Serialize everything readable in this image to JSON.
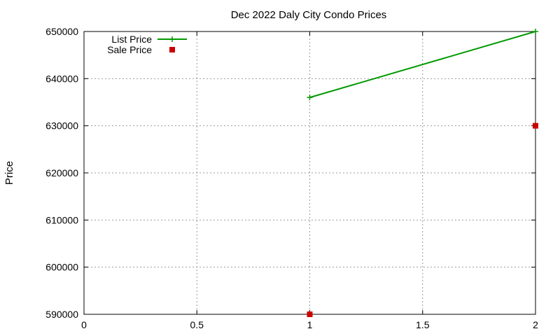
{
  "chart_data": {
    "type": "line",
    "title": "Dec 2022 Daly City Condo Prices",
    "xlabel": "",
    "ylabel": "Price",
    "xlim": [
      0,
      2
    ],
    "ylim": [
      590000,
      650000
    ],
    "xticks": [
      0,
      0.5,
      1,
      1.5,
      2
    ],
    "xtick_labels": [
      "0",
      "0.5",
      "1",
      "1.5",
      "2"
    ],
    "yticks": [
      590000,
      600000,
      610000,
      620000,
      630000,
      640000,
      650000
    ],
    "ytick_labels": [
      "590000",
      "600000",
      "610000",
      "620000",
      "630000",
      "640000",
      "650000"
    ],
    "grid": true,
    "legend_position": "top-left",
    "series": [
      {
        "name": "List Price",
        "style": "line-with-plus-markers",
        "color": "#009900",
        "x": [
          1,
          2
        ],
        "y": [
          636000,
          650000
        ]
      },
      {
        "name": "Sale Price",
        "style": "square-markers",
        "color": "#cc0000",
        "x": [
          1,
          2
        ],
        "y": [
          590000,
          630000
        ]
      }
    ]
  }
}
